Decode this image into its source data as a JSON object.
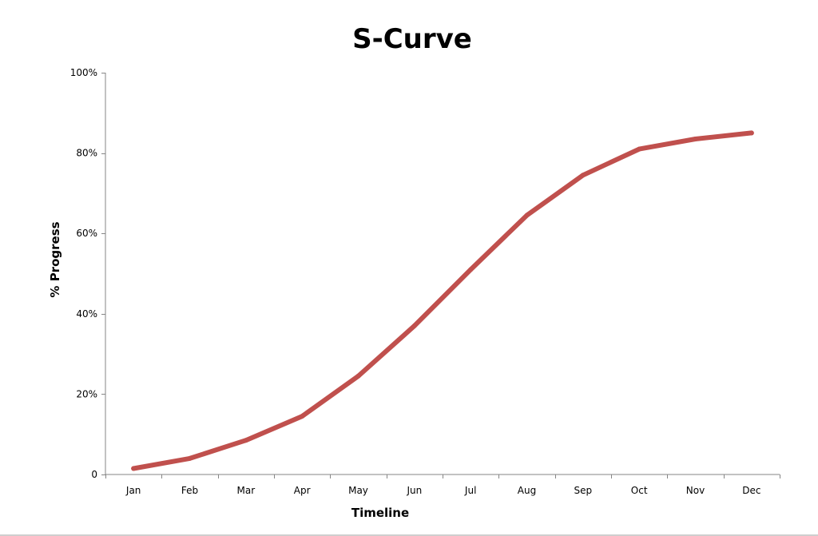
{
  "chart_data": {
    "type": "line",
    "title": "S-Curve",
    "xlabel": "Timeline",
    "ylabel": "% Progress",
    "categories": [
      "Jan",
      "Feb",
      "Mar",
      "Apr",
      "May",
      "Jun",
      "Jul",
      "Aug",
      "Sep",
      "Oct",
      "Nov",
      "Dec"
    ],
    "y_tick_labels": [
      "0",
      "20%",
      "40%",
      "60%",
      "80%",
      "100%"
    ],
    "y_tick_values": [
      0,
      20,
      40,
      60,
      80,
      100
    ],
    "ylim": [
      0,
      100
    ],
    "grid": false,
    "series": [
      {
        "values": [
          1.5,
          4,
          8.5,
          14.5,
          24.5,
          37,
          51,
          64.5,
          74.5,
          81,
          83.5,
          85
        ],
        "color": "#c0504d"
      }
    ]
  }
}
